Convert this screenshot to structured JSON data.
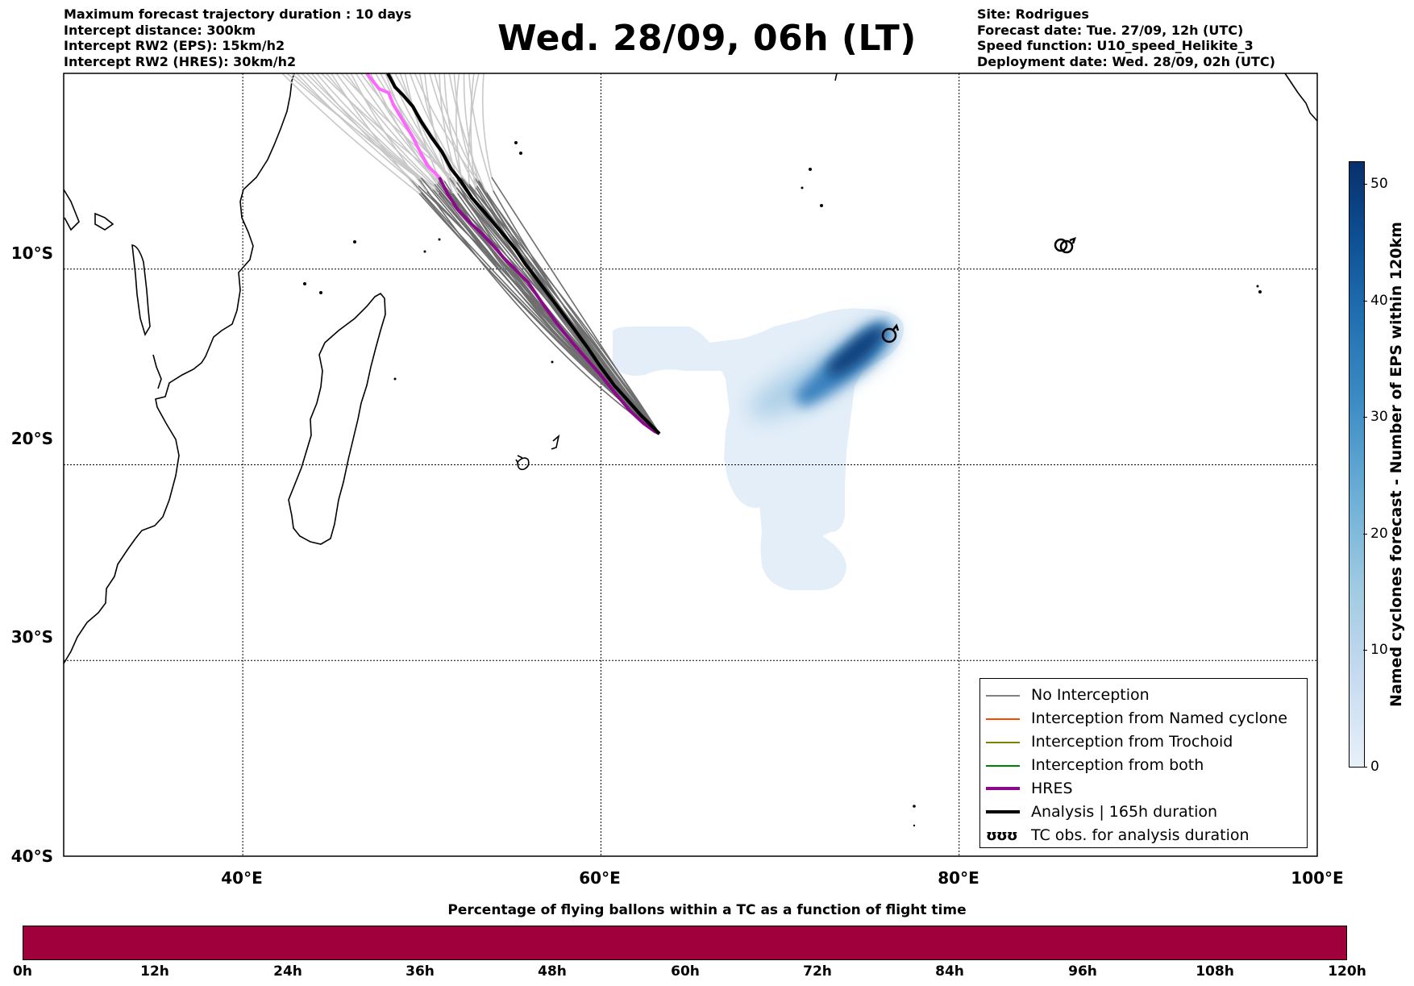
{
  "header_left": [
    "Maximum forecast trajectory duration : 10 days",
    "Intercept distance: 300km",
    "Intercept RW2 (EPS):  15km/h2",
    "Intercept RW2 (HRES): 30km/h2"
  ],
  "header_right": [
    "Site: Rodrigues",
    "Forecast date: Tue. 27/09, 12h (UTC)",
    "Speed function: U10_speed_Helikite_3",
    "Deployment date: Wed. 28/09, 02h (UTC)"
  ],
  "title": "Wed. 28/09, 06h (LT)",
  "map": {
    "lon_range": [
      30,
      100
    ],
    "lat_range": [
      -40,
      0
    ],
    "lat_ticks": [
      "10°S",
      "20°S",
      "30°S",
      "40°S"
    ],
    "lon_ticks": [
      "40°E",
      "60°E",
      "80°E",
      "100°E"
    ],
    "launch_site": "Rodrigues",
    "colors": {
      "hres": "#8b0a8b",
      "hres_early": "#ff66ff",
      "analysis": "#000000",
      "ensemble": "#707070",
      "ensemble_early": "#cccccc"
    }
  },
  "legend": {
    "items": [
      {
        "label": "No Interception",
        "color": "#808080",
        "style": "thin"
      },
      {
        "label": "Interception from Named cyclone",
        "color": "#ff4500",
        "style": "thin"
      },
      {
        "label": "Interception from Trochoid",
        "color": "#808000",
        "style": "thin"
      },
      {
        "label": "Interception from both",
        "color": "#008000",
        "style": "thin"
      },
      {
        "label": "HRES",
        "color": "#8b0a8b",
        "style": "thick"
      },
      {
        "label": "Analysis | 165h duration",
        "color": "#000000",
        "style": "thick"
      },
      {
        "label": "TC obs. for analysis duration",
        "symbol": "ʊʊʊ",
        "style": "symbol"
      }
    ]
  },
  "colorbar": {
    "label": "Named cyclones forecast - Number of EPS within 120km",
    "ticks": [
      "0",
      "10",
      "20",
      "30",
      "40",
      "50"
    ],
    "range": [
      0,
      52
    ]
  },
  "flight_bar": {
    "title": "Percentage of flying ballons within a TC as a function of flight time",
    "ticks": [
      "0h",
      "12h",
      "24h",
      "36h",
      "48h",
      "60h",
      "72h",
      "84h",
      "96h",
      "108h",
      "120h"
    ],
    "color": "#a0003c"
  }
}
